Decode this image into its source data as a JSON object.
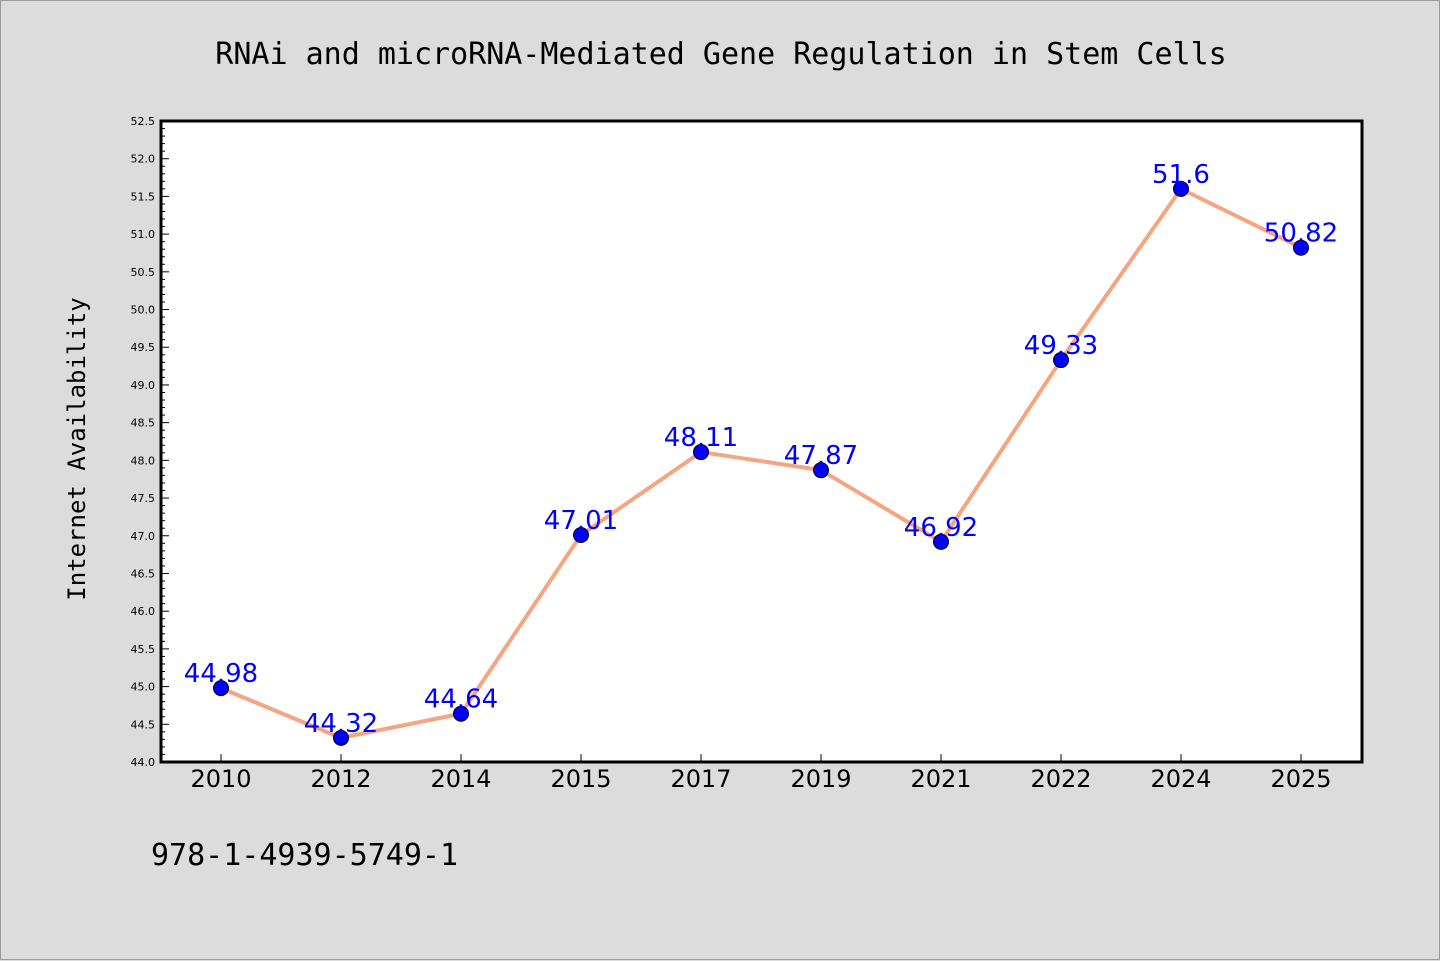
{
  "chart_data": {
    "type": "line",
    "title": "RNAi and microRNA-Mediated Gene Regulation in Stem Cells",
    "xlabel": "",
    "ylabel": "Internet Availability",
    "categories": [
      "2010",
      "2012",
      "2014",
      "2015",
      "2017",
      "2019",
      "2021",
      "2022",
      "2024",
      "2025"
    ],
    "series": [
      {
        "values": [
          44.98,
          44.32,
          44.64,
          47.01,
          48.11,
          47.87,
          46.92,
          49.33,
          51.6,
          50.82
        ],
        "data_labels": [
          "44.98",
          "44.32",
          "44.64",
          "47.01",
          "48.11",
          "47.87",
          "46.92",
          "49.33",
          "51.6",
          "50.82"
        ],
        "line_color": "#f4a582",
        "marker_color": "#0000ff"
      }
    ],
    "ylim": [
      44.0,
      52.5
    ],
    "yticks": [
      "44.0",
      "44.5",
      "45.0",
      "45.5",
      "46.0",
      "46.5",
      "47.0",
      "47.5",
      "48.0",
      "48.5",
      "49.0",
      "49.5",
      "50.0",
      "50.5",
      "51.0",
      "51.5",
      "52.0",
      "52.5"
    ],
    "grid": false,
    "legend": "none"
  },
  "footer": {
    "isbn": "978-1-4939-5749-1"
  },
  "colors": {
    "background": "#dcdcdc",
    "plot_area": "#ffffff",
    "line": "#f4a582",
    "marker": "#0000ff",
    "data_label": "#0000ff"
  }
}
